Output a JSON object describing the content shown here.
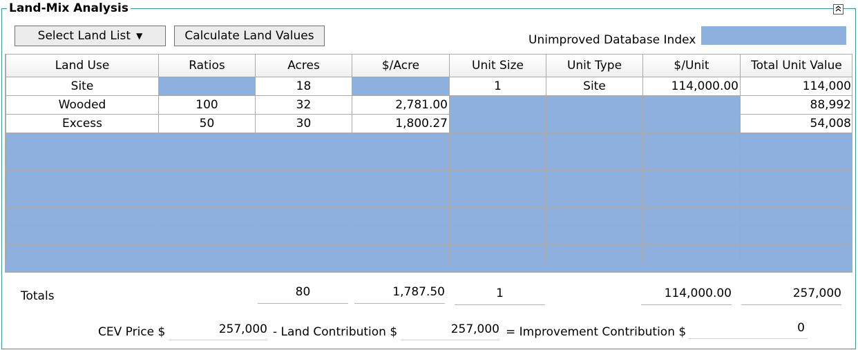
{
  "panel": {
    "title": "Land-Mix Analysis",
    "collapse_icon": "chevron-up-icon"
  },
  "toolbar": {
    "select_land_list": "Select Land List",
    "select_arrow": "▼",
    "calculate_land_values": "Calculate Land Values",
    "unimproved_db_index_label": "Unimproved Database Index",
    "unimproved_db_index_value": ""
  },
  "table": {
    "columns": [
      "Land Use",
      "Ratios",
      "Acres",
      "$/Acre",
      "Unit Size",
      "Unit Type",
      "$/Unit",
      "Total Unit Value"
    ],
    "rows": [
      {
        "land_use": "Site",
        "ratios": "",
        "acres": "18",
        "per_acre": "",
        "unit_size": "1",
        "unit_type": "Site",
        "per_unit": "114,000.00",
        "total": "114,000"
      },
      {
        "land_use": "Wooded",
        "ratios": "100",
        "acres": "32",
        "per_acre": "2,781.00",
        "unit_size": "",
        "unit_type": "",
        "per_unit": "",
        "total": "88,992"
      },
      {
        "land_use": "Excess",
        "ratios": "50",
        "acres": "30",
        "per_acre": "1,800.27",
        "unit_size": "",
        "unit_type": "",
        "per_unit": "",
        "total": "54,008"
      }
    ]
  },
  "totals": {
    "label": "Totals",
    "acres": "80",
    "per_acre": "1,787.50",
    "unit_size": "1",
    "per_unit": "114,000.00",
    "total": "257,000"
  },
  "summary": {
    "cev_label": "CEV Price $",
    "cev_value": "257,000",
    "land_label": "- Land Contribution $",
    "land_value": "257,000",
    "improvement_label": "= Improvement Contribution $",
    "improvement_value": "0"
  },
  "colors": {
    "accent_border": "#2e9a9a",
    "editable_fill": "#8db0df"
  }
}
